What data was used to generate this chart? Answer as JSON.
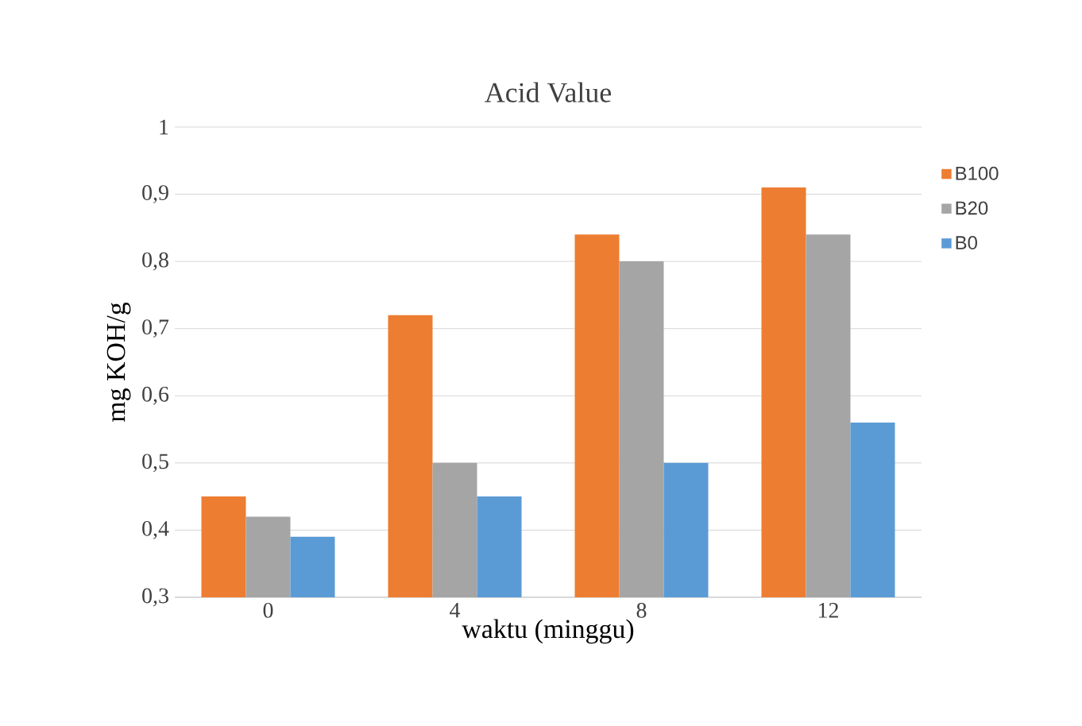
{
  "chart_data": {
    "type": "bar",
    "title": "Acid Value",
    "xlabel": "waktu (minggu)",
    "ylabel": "mg KOH/g",
    "categories": [
      "0",
      "4",
      "8",
      "12"
    ],
    "series": [
      {
        "name": "B100",
        "color": "#ed7d31",
        "values": [
          0.45,
          0.72,
          0.84,
          0.91
        ]
      },
      {
        "name": "B20",
        "color": "#a5a5a5",
        "values": [
          0.42,
          0.5,
          0.8,
          0.84
        ]
      },
      {
        "name": "B0",
        "color": "#5b9bd5",
        "values": [
          0.39,
          0.45,
          0.5,
          0.56
        ]
      }
    ],
    "ylim": [
      0.3,
      1
    ],
    "yticks": [
      {
        "value": 0.3,
        "label": "0,3"
      },
      {
        "value": 0.4,
        "label": "0,4"
      },
      {
        "value": 0.5,
        "label": "0,5"
      },
      {
        "value": 0.6,
        "label": "0,6"
      },
      {
        "value": 0.7,
        "label": "0,7"
      },
      {
        "value": 0.8,
        "label": "0,8"
      },
      {
        "value": 0.9,
        "label": "0,9"
      },
      {
        "value": 1,
        "label": "1"
      }
    ],
    "grid": "y",
    "legend": "right"
  }
}
